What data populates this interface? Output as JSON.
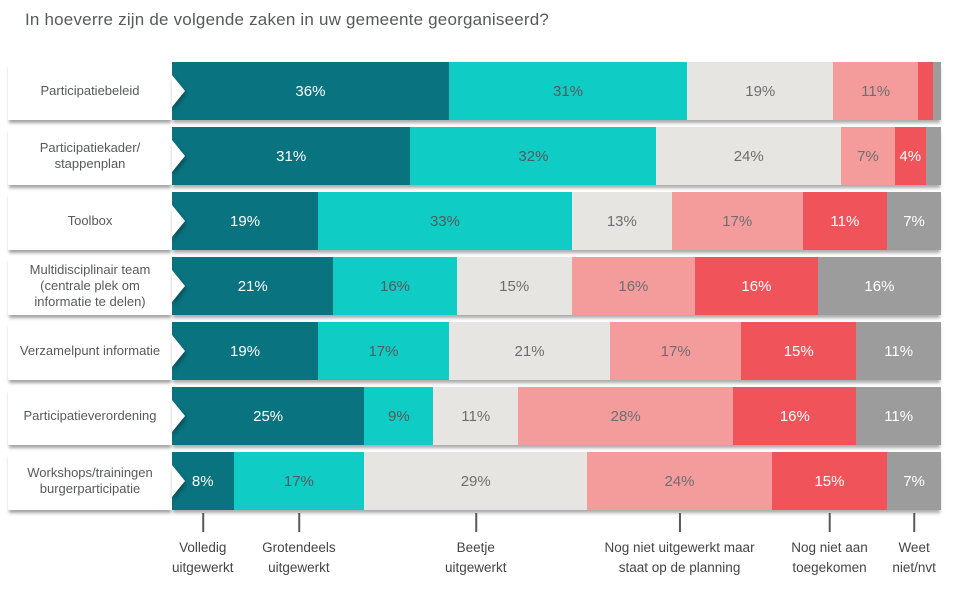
{
  "title": "In hoeverre zijn de volgende zaken in uw gemeente georganiseerd?",
  "chart_data": {
    "type": "bar",
    "stacked": true,
    "orientation": "horizontal",
    "unit": "%",
    "xlim": [
      0,
      100
    ],
    "label_min_value": 4,
    "title": "In hoeverre zijn de volgende zaken in uw gemeente georganiseerd?",
    "categories": [
      "Participatiebeleid",
      "Participatiekader/\nstappenplan",
      "Toolbox",
      "Multidisciplinair team\n(centrale plek om\ninformatie te delen)",
      "Verzamelpunt informatie",
      "Participatieverordening",
      "Workshops/trainingen\nburgerparticipatie"
    ],
    "series": [
      {
        "name": "Volledig uitgewerkt",
        "color": "#0a7380",
        "label_color": "#ffffff",
        "values": [
          36,
          31,
          19,
          21,
          19,
          25,
          8
        ]
      },
      {
        "name": "Grotendeels uitgewerkt",
        "color": "#0fcdc5",
        "label_color": "#58595b",
        "values": [
          31,
          32,
          33,
          16,
          17,
          9,
          17
        ]
      },
      {
        "name": "Beetje uitgewerkt",
        "color": "#e6e5e2",
        "label_color": "#6d6e71",
        "values": [
          19,
          24,
          13,
          15,
          21,
          11,
          29
        ]
      },
      {
        "name": "Nog niet uitgewerkt maar staat op de planning",
        "color": "#f49c9c",
        "label_color": "#6d6e71",
        "values": [
          11,
          7,
          17,
          16,
          17,
          28,
          24
        ]
      },
      {
        "name": "Nog niet aan toegekomen",
        "color": "#f0545a",
        "label_color": "#ffffff",
        "values": [
          2,
          4,
          11,
          16,
          15,
          16,
          15
        ]
      },
      {
        "name": "Weet niet/nvt",
        "color": "#9c9c9c",
        "label_color": "#ffffff",
        "values": [
          1,
          2,
          7,
          16,
          11,
          11,
          7
        ]
      }
    ],
    "legend_labels": [
      "Volledig\nuitgewerkt",
      "Grotendeels\nuitgewerkt",
      "Beetje\nuitgewerkt",
      "Nog niet uitgewerkt maar\nstaat op de planning",
      "Nog niet aan\ntoegekomen",
      "Weet\nniet/nvt"
    ],
    "legend_position": "bottom"
  },
  "colors": {
    "background": "#ffffff",
    "title_text": "#58595b",
    "legend_text": "#454547",
    "tick": "#58595b"
  }
}
